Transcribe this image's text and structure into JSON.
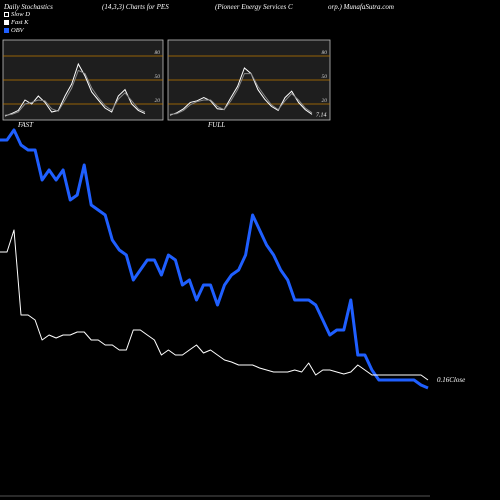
{
  "header": {
    "left": "Daily Stochastics",
    "params": "(14,3,3) Charts for PES",
    "company_a": "(Pioneer Energy Services C",
    "company_b": "orp.) MunafaSutra.com"
  },
  "legend": [
    {
      "label": "Slow  D",
      "color": "#000000",
      "border": "#ffffff"
    },
    {
      "label": "Fast  K",
      "color": "#ffffff",
      "border": "#ffffff"
    },
    {
      "label": "OBV",
      "color": "#1f5fff",
      "border": "#1f5fff"
    }
  ],
  "colors": {
    "obv": "#1f5fff",
    "close": "#ffffff",
    "band": "#c07800",
    "panel": "#1e1e1e"
  },
  "chart_data": [
    {
      "type": "line",
      "panel": "FAST",
      "label": "FAST",
      "yticks": [
        20,
        50,
        80
      ],
      "ylim": [
        0,
        100
      ],
      "series": [
        {
          "name": "Fast K",
          "values": [
            5,
            8,
            12,
            25,
            20,
            30,
            22,
            10,
            12,
            30,
            45,
            70,
            55,
            35,
            25,
            15,
            10,
            30,
            38,
            20,
            12,
            8
          ]
        },
        {
          "name": "Slow D",
          "values": [
            6,
            7,
            10,
            20,
            22,
            25,
            24,
            14,
            11,
            25,
            40,
            62,
            58,
            40,
            28,
            18,
            12,
            26,
            34,
            24,
            14,
            10
          ]
        }
      ]
    },
    {
      "type": "line",
      "panel": "FULL",
      "label": "FULL",
      "value_label": "7.14",
      "yticks": [
        20,
        50,
        80
      ],
      "ylim": [
        0,
        100
      ],
      "series": [
        {
          "name": "Fast K",
          "values": [
            6,
            9,
            14,
            22,
            24,
            28,
            24,
            14,
            13,
            28,
            42,
            65,
            58,
            38,
            26,
            17,
            12,
            28,
            36,
            22,
            13,
            7
          ]
        },
        {
          "name": "Slow D",
          "values": [
            7,
            8,
            12,
            19,
            23,
            25,
            25,
            17,
            13,
            24,
            38,
            58,
            58,
            42,
            30,
            19,
            13,
            24,
            33,
            25,
            15,
            9
          ]
        }
      ]
    },
    {
      "type": "line",
      "panel": "main",
      "series": [
        {
          "name": "OBV",
          "values": [
            140,
            140,
            130,
            145,
            150,
            150,
            180,
            170,
            180,
            170,
            200,
            195,
            165,
            205,
            210,
            215,
            240,
            250,
            255,
            280,
            270,
            260,
            260,
            275,
            255,
            260,
            285,
            280,
            300,
            285,
            285,
            305,
            285,
            275,
            270,
            255,
            215,
            230,
            245,
            255,
            270,
            280,
            300,
            300,
            300,
            305,
            320,
            335,
            330,
            330,
            300,
            355,
            355,
            370,
            380,
            380,
            380,
            380,
            380,
            380,
            385,
            388
          ]
        },
        {
          "name": "Close",
          "values": [
            252,
            252,
            230,
            315,
            315,
            320,
            340,
            335,
            338,
            335,
            335,
            332,
            332,
            340,
            340,
            345,
            345,
            350,
            350,
            330,
            330,
            335,
            340,
            355,
            350,
            355,
            355,
            350,
            345,
            353,
            350,
            355,
            360,
            362,
            365,
            365,
            365,
            368,
            370,
            372,
            372,
            372,
            370,
            372,
            363,
            375,
            370,
            370,
            372,
            374,
            372,
            365,
            370,
            375,
            375,
            375,
            375,
            375,
            375,
            375,
            375,
            380
          ]
        }
      ],
      "price_label": "0.16",
      "price_label_suffix": "Close"
    }
  ]
}
